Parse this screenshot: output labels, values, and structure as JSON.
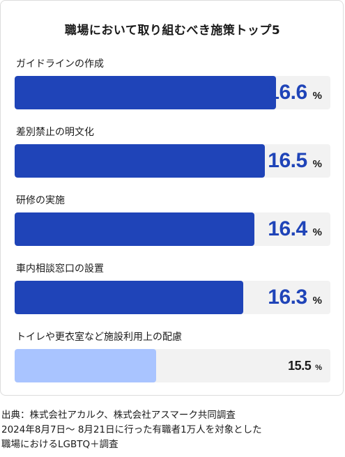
{
  "chart_data": {
    "type": "bar",
    "orientation": "horizontal",
    "title": "職場において取り組むべき施策トップ5",
    "categories": [
      "ガイドラインの作成",
      "差別禁止の明文化",
      "研修の実施",
      "車内相談窓口の設置",
      "トイレや更衣室など施設利用上の配慮"
    ],
    "values": [
      16.6,
      16.5,
      16.4,
      16.3,
      15.5
    ],
    "value_labels": [
      "16.6",
      "16.5",
      "16.4",
      "16.3",
      "15.5"
    ],
    "unit": "%",
    "xlim": [
      14.2,
      17.1
    ],
    "colors": {
      "top": "#1f44b8",
      "other": "#a9c4ff",
      "track": "#f2f2f2"
    }
  },
  "source": {
    "line1": "出典：株式会社アカルク、株式会社アスマーク共同調査",
    "line2": "2024年8月7日～ 8月21日に行った有職者1万人を対象とした",
    "line3": "職場におけるLGBTQ＋調査"
  }
}
